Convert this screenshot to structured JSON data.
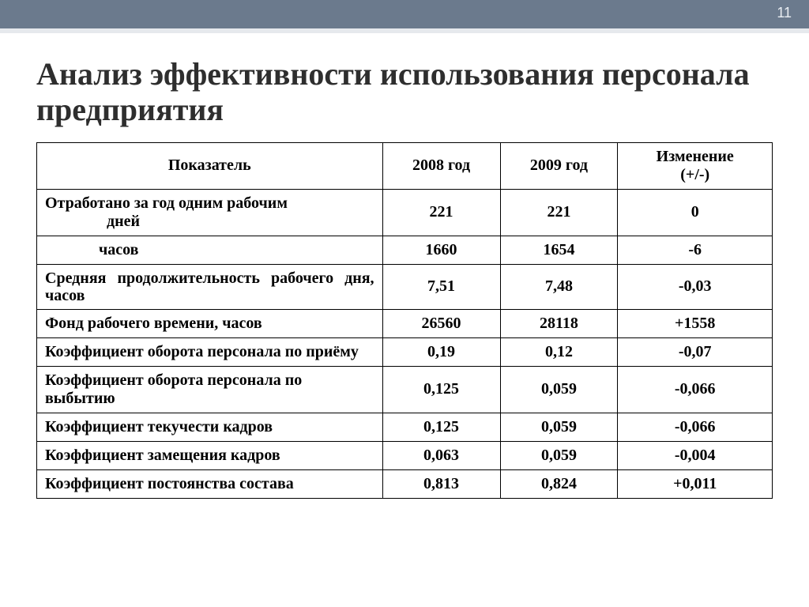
{
  "slide": {
    "page_number": "11",
    "title": "Анализ эффективности использования персонала предприятия"
  },
  "table": {
    "type": "table",
    "background_color": "#ffffff",
    "border_color": "#000000",
    "text_color": "#000000",
    "header_fontsize": 20,
    "cell_fontsize": 20,
    "font_family": "Times New Roman",
    "columns": [
      {
        "key": "indicator",
        "label": "Показатель",
        "align": "left",
        "width_pct": 47,
        "bold": true
      },
      {
        "key": "y2008",
        "label": "2008 год",
        "align": "center",
        "width_pct": 16,
        "bold": true
      },
      {
        "key": "y2009",
        "label": "2009 год",
        "align": "center",
        "width_pct": 16,
        "bold": true
      },
      {
        "key": "change",
        "label": "Изменение",
        "sublabel": "(+/-)",
        "align": "center",
        "width_pct": 21,
        "bold": true
      }
    ],
    "rows": [
      {
        "indicator_l1": "Отработано за год одним рабочим",
        "indicator_l2": "дней",
        "y2008": "221",
        "y2009": "221",
        "change": "0",
        "indent": false,
        "multiline": true
      },
      {
        "indicator": "часов",
        "y2008": "1660",
        "y2009": "1654",
        "change": "-6",
        "indent": true
      },
      {
        "indicator": "Средняя продолжительность рабочего дня, часов",
        "y2008": "7,51",
        "y2009": "7,48",
        "change": "-0,03",
        "justify": true
      },
      {
        "indicator": "Фонд рабочего времени, часов",
        "y2008": "26560",
        "y2009": "28118",
        "change": "+1558"
      },
      {
        "indicator": "Коэффициент оборота персонала по приёму",
        "y2008": "0,19",
        "y2009": "0,12",
        "change": "-0,07"
      },
      {
        "indicator": "Коэффициент оборота персонала по выбытию",
        "y2008": "0,125",
        "y2009": "0,059",
        "change": "-0,066"
      },
      {
        "indicator": "Коэффициент текучести кадров",
        "y2008": "0,125",
        "y2009": "0,059",
        "change": "-0,066"
      },
      {
        "indicator": "Коэффициент замещения кадров",
        "y2008": "0,063",
        "y2009": "0,059",
        "change": "-0,004"
      },
      {
        "indicator": "Коэффициент постоянства состава",
        "y2008": "0,813",
        "y2009": "0,824",
        "change": "+0,011"
      }
    ]
  },
  "theme": {
    "topbar_bg": "#6b7a8d",
    "topbar_text": "#e9edf2",
    "accent_strip": "#e6e9ed",
    "title_color": "#2e2e2e"
  }
}
